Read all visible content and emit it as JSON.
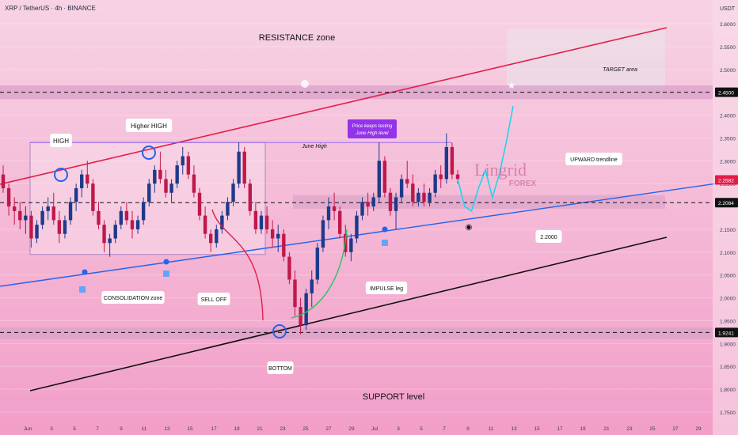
{
  "header": {
    "symbol_text": "XRP / TetherUS · 4h · BINANCE",
    "currency": "USDT"
  },
  "colors": {
    "bg_top": "#f7d3e4",
    "bg_bottom": "#f29ec8",
    "up_candle": "#1e3a8a",
    "down_candle": "#c0184a",
    "resistance_line": "#e11d48",
    "support_line": "#111111",
    "trendline": "#2563eb",
    "zone_band": "#d9a0c8",
    "projection": "#22d3ee",
    "price_tag_dark": "#111111",
    "price_tag_red": "#e11d48"
  },
  "annotations": {
    "resistance_zone": "RESISTANCE zone",
    "target_area": "TARGET area",
    "high": "HIGH",
    "higher_high": "Higher HIGH",
    "june_high": "June High",
    "testing_note_1": "Price keeps testing",
    "testing_note_2": "June High level",
    "upward_trendline": "UPWARD trendline",
    "consolidation_zone": "CONSOLIDATION zone",
    "sell_off": "SELL OFF",
    "impulse_leg": "IMPULSE leg",
    "bottom": "BOTTOM",
    "support_level": "SUPPORT level",
    "level_2200": "2.2000",
    "watermark_main": "Lingrid",
    "watermark_sub": "FOREX"
  },
  "chart_data": {
    "type": "candlestick",
    "symbol": "XRP / TetherUS",
    "timeframe": "4h",
    "exchange": "BINANCE",
    "y_axis": {
      "ticks": [
        "2.6000",
        "2.5500",
        "2.5000",
        "2.4000",
        "2.3500",
        "2.3000",
        "2.2500",
        "2.1500",
        "2.1000",
        "2.0500",
        "2.0000",
        "1.9500",
        "1.9000",
        "1.8500",
        "1.8000",
        "1.7500"
      ],
      "range": [
        1.72,
        2.64
      ]
    },
    "x_axis": {
      "ticks": [
        "Jun",
        "3",
        "5",
        "7",
        "9",
        "11",
        "13",
        "15",
        "17",
        "19",
        "21",
        "23",
        "25",
        "27",
        "29",
        "Jul",
        "3",
        "5",
        "7",
        "9",
        "11",
        "13",
        "15",
        "17",
        "19",
        "21",
        "23",
        "25",
        "27",
        "29"
      ]
    },
    "price_tags": [
      {
        "value": "2.4500",
        "style": "dark"
      },
      {
        "value": "2.2582",
        "style": "red"
      },
      {
        "value": "2.2084",
        "style": "dark"
      },
      {
        "value": "1.9241",
        "style": "dark"
      }
    ],
    "levels": {
      "resistance_zone": [
        2.435,
        2.465
      ],
      "support_zone": [
        1.91,
        1.935
      ],
      "june_high": 2.34,
      "consolidation_box": [
        2.095,
        2.34
      ],
      "mid_zone": [
        2.195,
        2.225
      ]
    },
    "candle_series": [
      [
        2.27,
        2.29,
        2.23,
        2.24
      ],
      [
        2.24,
        2.25,
        2.18,
        2.2
      ],
      [
        2.2,
        2.22,
        2.16,
        2.19
      ],
      [
        2.19,
        2.21,
        2.15,
        2.17
      ],
      [
        2.17,
        2.2,
        2.14,
        2.18
      ],
      [
        2.18,
        2.19,
        2.11,
        2.13
      ],
      [
        2.13,
        2.17,
        2.12,
        2.16
      ],
      [
        2.16,
        2.2,
        2.15,
        2.19
      ],
      [
        2.19,
        2.22,
        2.17,
        2.2
      ],
      [
        2.2,
        2.23,
        2.16,
        2.17
      ],
      [
        2.17,
        2.19,
        2.12,
        2.14
      ],
      [
        2.14,
        2.18,
        2.13,
        2.17
      ],
      [
        2.17,
        2.22,
        2.16,
        2.21
      ],
      [
        2.21,
        2.25,
        2.19,
        2.24
      ],
      [
        2.24,
        2.28,
        2.22,
        2.27
      ],
      [
        2.27,
        2.3,
        2.24,
        2.25
      ],
      [
        2.25,
        2.26,
        2.18,
        2.19
      ],
      [
        2.19,
        2.21,
        2.15,
        2.16
      ],
      [
        2.16,
        2.17,
        2.1,
        2.12
      ],
      [
        2.12,
        2.14,
        2.09,
        2.13
      ],
      [
        2.13,
        2.17,
        2.12,
        2.16
      ],
      [
        2.16,
        2.2,
        2.15,
        2.19
      ],
      [
        2.19,
        2.21,
        2.16,
        2.17
      ],
      [
        2.17,
        2.19,
        2.13,
        2.15
      ],
      [
        2.15,
        2.18,
        2.14,
        2.17
      ],
      [
        2.17,
        2.22,
        2.16,
        2.21
      ],
      [
        2.21,
        2.26,
        2.2,
        2.25
      ],
      [
        2.25,
        2.29,
        2.23,
        2.28
      ],
      [
        2.28,
        2.32,
        2.25,
        2.26
      ],
      [
        2.26,
        2.28,
        2.22,
        2.23
      ],
      [
        2.23,
        2.26,
        2.21,
        2.25
      ],
      [
        2.25,
        2.3,
        2.24,
        2.29
      ],
      [
        2.29,
        2.33,
        2.27,
        2.31
      ],
      [
        2.31,
        2.32,
        2.26,
        2.27
      ],
      [
        2.27,
        2.29,
        2.22,
        2.23
      ],
      [
        2.23,
        2.24,
        2.17,
        2.18
      ],
      [
        2.18,
        2.2,
        2.13,
        2.14
      ],
      [
        2.14,
        2.15,
        2.1,
        2.12
      ],
      [
        2.12,
        2.16,
        2.11,
        2.15
      ],
      [
        2.15,
        2.19,
        2.14,
        2.18
      ],
      [
        2.18,
        2.22,
        2.17,
        2.21
      ],
      [
        2.21,
        2.26,
        2.2,
        2.25
      ],
      [
        2.25,
        2.34,
        2.24,
        2.32
      ],
      [
        2.32,
        2.33,
        2.24,
        2.25
      ],
      [
        2.25,
        2.26,
        2.18,
        2.19
      ],
      [
        2.19,
        2.21,
        2.14,
        2.15
      ],
      [
        2.15,
        2.19,
        2.14,
        2.18
      ],
      [
        2.18,
        2.2,
        2.14,
        2.15
      ],
      [
        2.15,
        2.17,
        2.11,
        2.13
      ],
      [
        2.13,
        2.16,
        2.1,
        2.14
      ],
      [
        2.14,
        2.15,
        2.08,
        2.09
      ],
      [
        2.09,
        2.1,
        2.03,
        2.04
      ],
      [
        2.04,
        2.06,
        1.96,
        1.98
      ],
      [
        1.98,
        2.0,
        1.92,
        1.94
      ],
      [
        1.94,
        2.02,
        1.93,
        2.01
      ],
      [
        2.01,
        2.06,
        1.98,
        2.04
      ],
      [
        2.04,
        2.12,
        2.03,
        2.11
      ],
      [
        2.11,
        2.18,
        2.1,
        2.17
      ],
      [
        2.17,
        2.22,
        2.15,
        2.2
      ],
      [
        2.2,
        2.23,
        2.17,
        2.19
      ],
      [
        2.19,
        2.2,
        2.13,
        2.14
      ],
      [
        2.14,
        2.16,
        2.09,
        2.1
      ],
      [
        2.1,
        2.14,
        2.08,
        2.13
      ],
      [
        2.13,
        2.19,
        2.12,
        2.18
      ],
      [
        2.18,
        2.22,
        2.17,
        2.21
      ],
      [
        2.21,
        2.23,
        2.18,
        2.2
      ],
      [
        2.2,
        2.23,
        2.19,
        2.22
      ],
      [
        2.22,
        2.34,
        2.21,
        2.3
      ],
      [
        2.3,
        2.31,
        2.22,
        2.23
      ],
      [
        2.23,
        2.24,
        2.18,
        2.19
      ],
      [
        2.19,
        2.23,
        2.15,
        2.22
      ],
      [
        2.22,
        2.27,
        2.21,
        2.26
      ],
      [
        2.26,
        2.3,
        2.24,
        2.25
      ],
      [
        2.25,
        2.27,
        2.2,
        2.21
      ],
      [
        2.21,
        2.24,
        2.2,
        2.23
      ],
      [
        2.23,
        2.25,
        2.2,
        2.21
      ],
      [
        2.21,
        2.24,
        2.2,
        2.23
      ],
      [
        2.23,
        2.28,
        2.22,
        2.27
      ],
      [
        2.27,
        2.29,
        2.24,
        2.26
      ],
      [
        2.26,
        2.36,
        2.25,
        2.33
      ],
      [
        2.33,
        2.34,
        2.26,
        2.27
      ],
      [
        2.27,
        2.28,
        2.25,
        2.26
      ]
    ],
    "projection_path": [
      2.26,
      2.2,
      2.19,
      2.24,
      2.28,
      2.22,
      2.27,
      2.34,
      2.42
    ]
  }
}
